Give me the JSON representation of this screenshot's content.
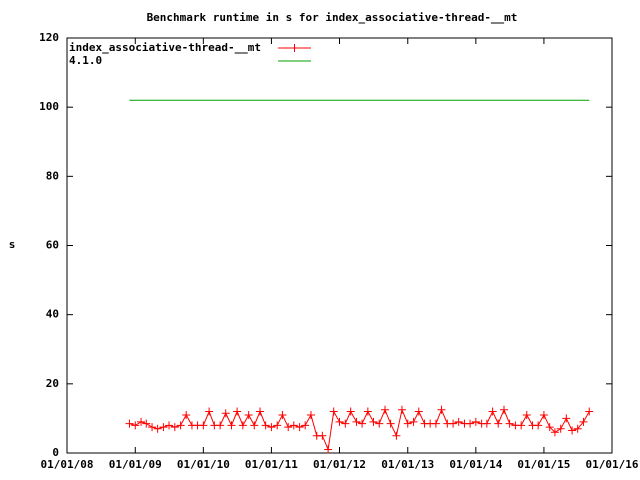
{
  "chart_data": {
    "type": "line",
    "title": "Benchmark runtime in s for index_associative-thread-__mt",
    "y_label": "s",
    "x": [
      "2008-12-01",
      "2009-01-01",
      "2009-02-01",
      "2009-03-01",
      "2009-04-01",
      "2009-05-01",
      "2009-06-01",
      "2009-07-01",
      "2009-08-01",
      "2009-09-01",
      "2009-10-01",
      "2009-11-01",
      "2009-12-01",
      "2010-01-01",
      "2010-02-01",
      "2010-03-01",
      "2010-04-01",
      "2010-05-01",
      "2010-06-01",
      "2010-07-01",
      "2010-08-01",
      "2010-09-01",
      "2010-10-01",
      "2010-11-01",
      "2010-12-01",
      "2011-01-01",
      "2011-02-01",
      "2011-03-01",
      "2011-04-01",
      "2011-05-01",
      "2011-06-01",
      "2011-07-01",
      "2011-08-01",
      "2011-09-01",
      "2011-10-01",
      "2011-11-01",
      "2011-12-01",
      "2012-01-01",
      "2012-02-01",
      "2012-03-01",
      "2012-04-01",
      "2012-05-01",
      "2012-06-01",
      "2012-07-01",
      "2012-08-01",
      "2012-09-01",
      "2012-10-01",
      "2012-11-01",
      "2012-12-01",
      "2013-01-01",
      "2013-02-01",
      "2013-03-01",
      "2013-04-01",
      "2013-05-01",
      "2013-06-01",
      "2013-07-01",
      "2013-08-01",
      "2013-09-01",
      "2013-10-01",
      "2013-11-01",
      "2013-12-01",
      "2014-01-01",
      "2014-02-01",
      "2014-03-01",
      "2014-04-01",
      "2014-05-01",
      "2014-06-01",
      "2014-07-01",
      "2014-08-01",
      "2014-09-01",
      "2014-10-01",
      "2014-11-01",
      "2014-12-01",
      "2015-01-01",
      "2015-02-01",
      "2015-03-01",
      "2015-04-01",
      "2015-05-01",
      "2015-06-01",
      "2015-07-01",
      "2015-08-01",
      "2015-09-01"
    ],
    "series": [
      {
        "name": "index_associative-thread-__mt",
        "color": "#ff0000",
        "marker": "+",
        "values": [
          8.5,
          8,
          9,
          8.5,
          7.5,
          7,
          7.5,
          8,
          7.5,
          8,
          11,
          8,
          8,
          8,
          12,
          8,
          8,
          11.5,
          8,
          12,
          8,
          11,
          8,
          12,
          8,
          7.5,
          8,
          11,
          7.5,
          8,
          7.5,
          8,
          11,
          5,
          5,
          1,
          12,
          9,
          8.5,
          12,
          9,
          8.5,
          12,
          9,
          8.5,
          12.5,
          8.5,
          5,
          12.5,
          8.5,
          9,
          12,
          8.5,
          8.5,
          8.5,
          12.5,
          8.5,
          8.5,
          9,
          8.5,
          8.5,
          9,
          8.5,
          8.5,
          12,
          8.5,
          12.5,
          8.5,
          8,
          8,
          11,
          8,
          8,
          11,
          7.5,
          6,
          7,
          10,
          6.5,
          7,
          9,
          12
        ]
      },
      {
        "name": "4.1.0",
        "color": "#00a000",
        "x": [
          "2008-12-01",
          "2015-09-01"
        ],
        "values": [
          102,
          102
        ]
      }
    ],
    "xlim": [
      "2008-01-01",
      "2016-01-01"
    ],
    "xticks": [
      {
        "value": "2008-01-01",
        "label": "01/01/08"
      },
      {
        "value": "2009-01-01",
        "label": "01/01/09"
      },
      {
        "value": "2010-01-01",
        "label": "01/01/10"
      },
      {
        "value": "2011-01-01",
        "label": "01/01/11"
      },
      {
        "value": "2012-01-01",
        "label": "01/01/12"
      },
      {
        "value": "2013-01-01",
        "label": "01/01/13"
      },
      {
        "value": "2014-01-01",
        "label": "01/01/14"
      },
      {
        "value": "2015-01-01",
        "label": "01/01/15"
      },
      {
        "value": "2016-01-01",
        "label": "01/01/16"
      }
    ],
    "ylim": [
      0,
      120
    ],
    "yticks": [
      0,
      20,
      40,
      60,
      80,
      100,
      120
    ],
    "grid": false,
    "legend": "top-left"
  }
}
